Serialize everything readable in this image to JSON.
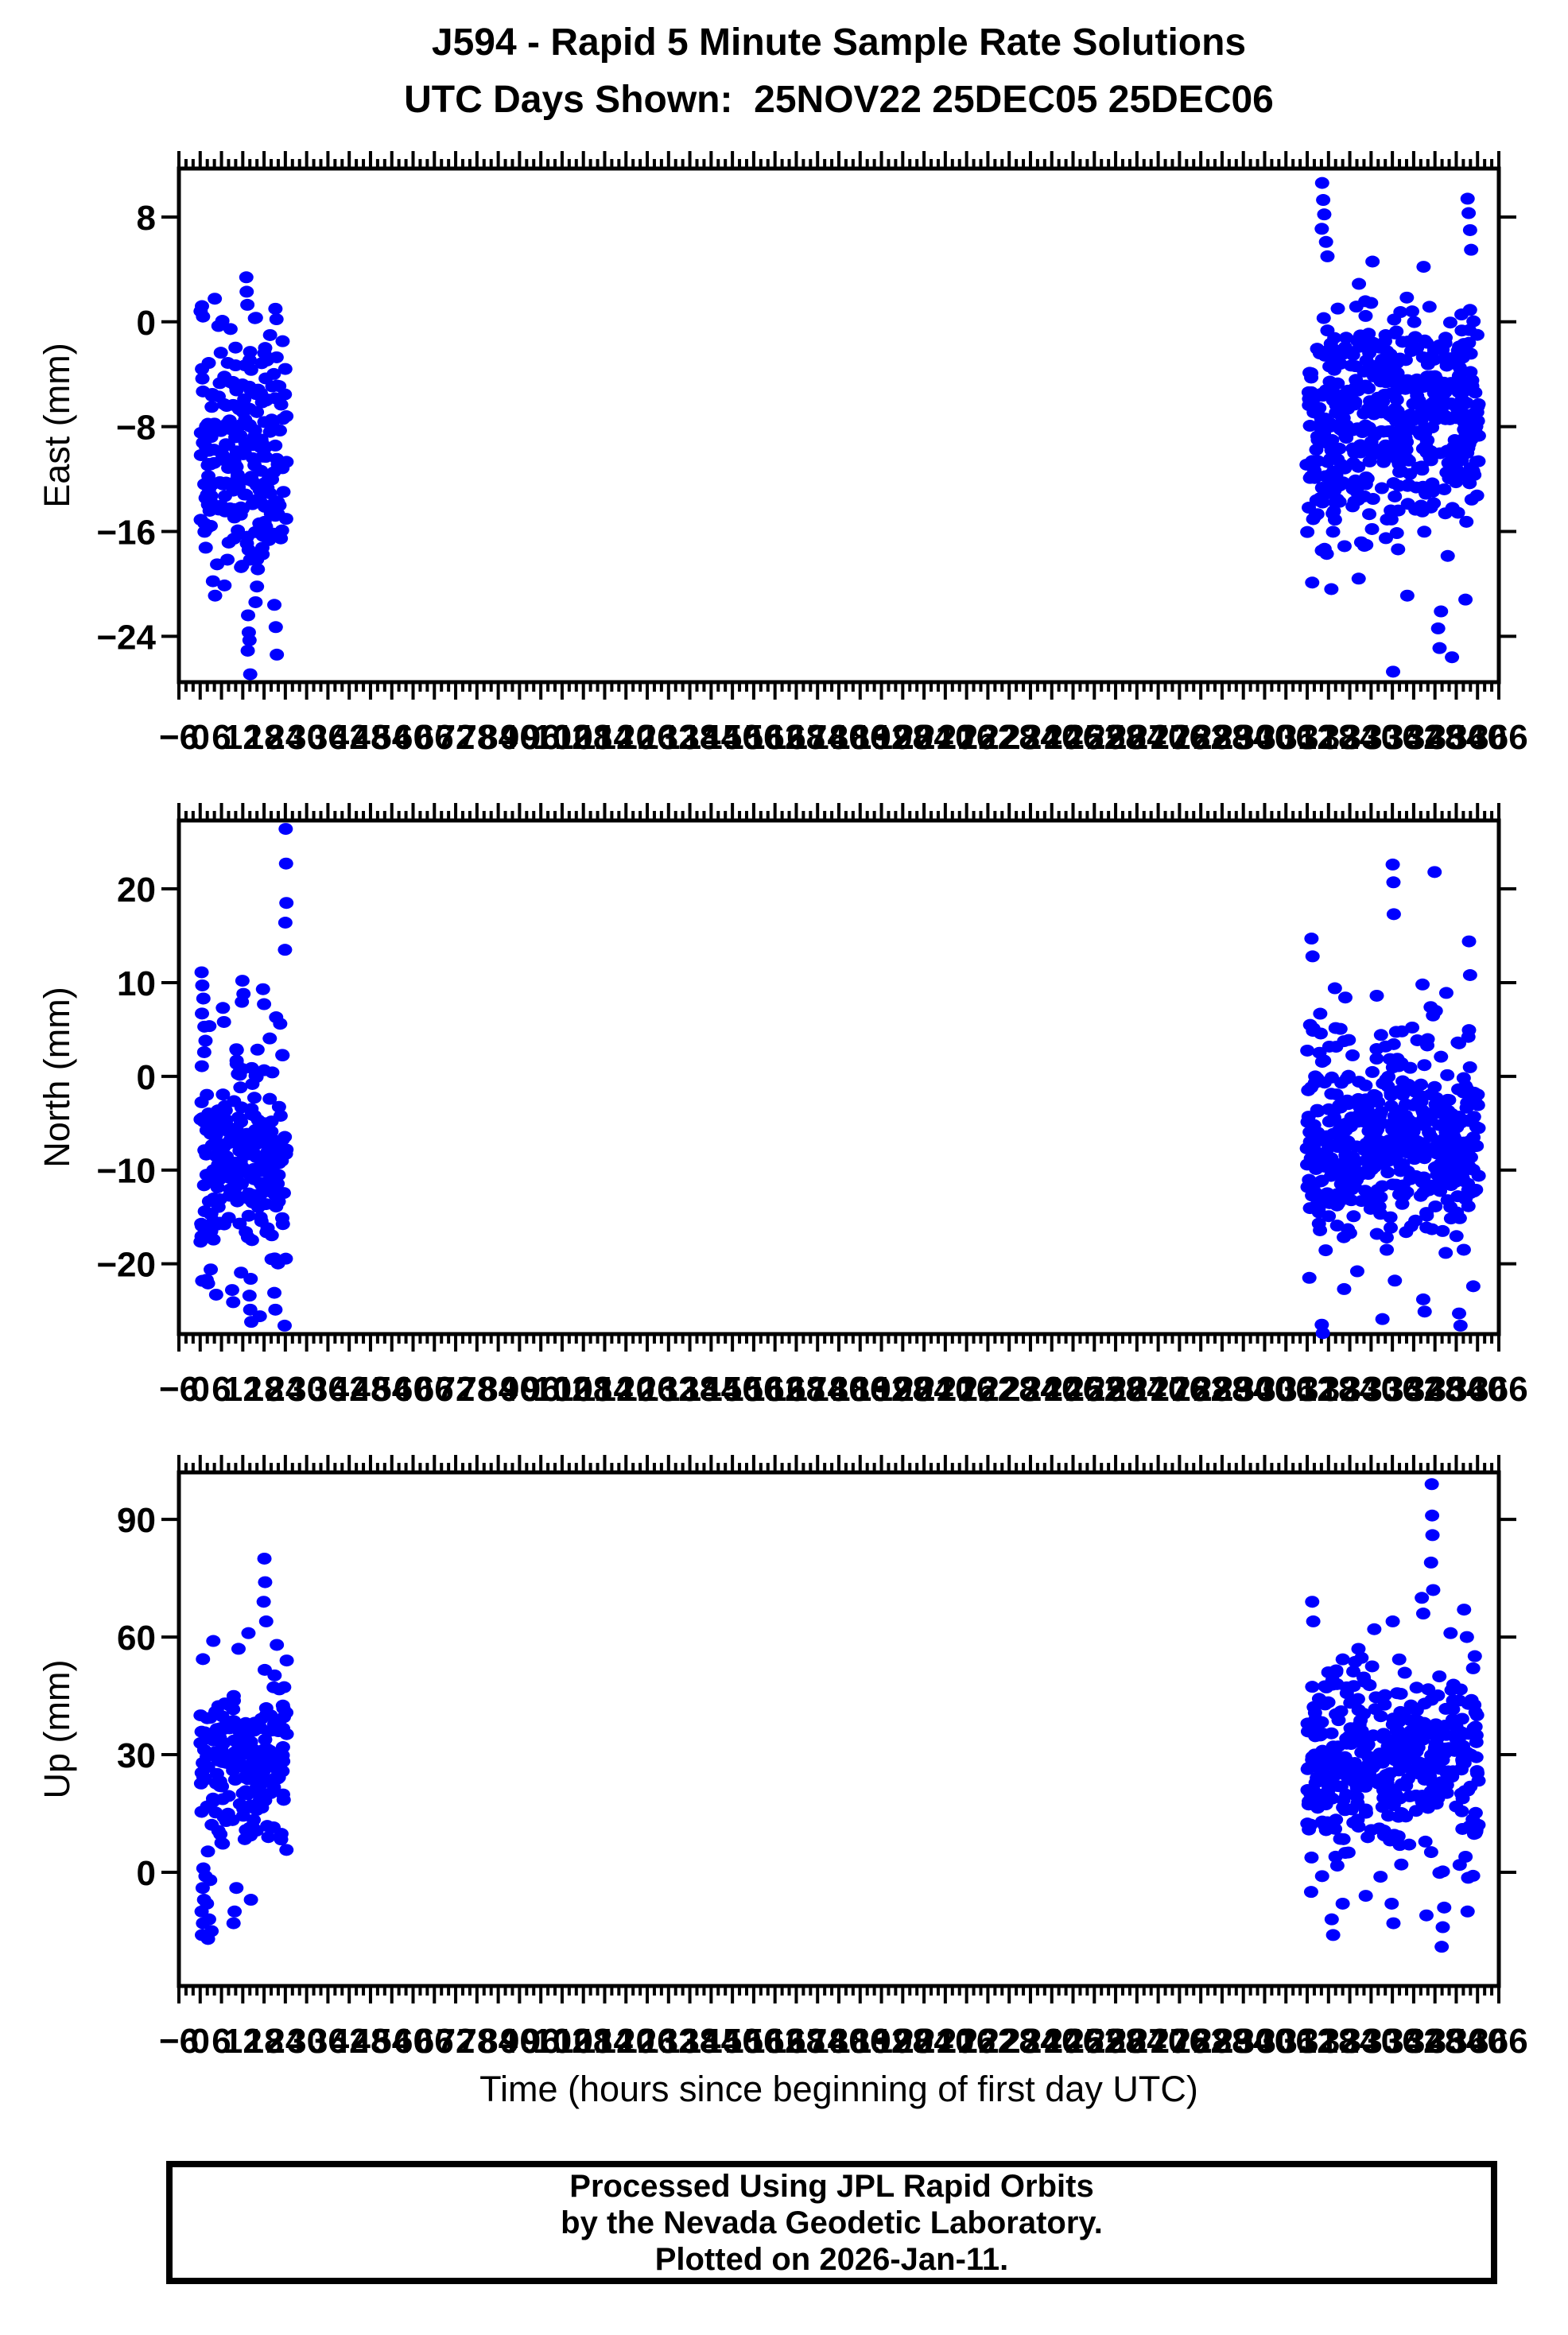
{
  "title": {
    "line1": "J594 - Rapid 5 Minute Sample Rate Solutions",
    "line2": "UTC Days Shown:  25NOV22 25DEC05 25DEC06"
  },
  "footer": {
    "line1": "Processed Using JPL Rapid Orbits",
    "line2": "by the Nevada Geodetic Laboratory.",
    "line3": "Plotted on 2026-Jan-11."
  },
  "colors": {
    "point": "#0000ff",
    "frame": "#000000",
    "background": "#ffffff",
    "text": "#000000"
  },
  "point_radius_x": 9,
  "point_radius_y": 7.5,
  "x_axis": {
    "title": "Time (hours since beginning of first day UTC)",
    "min": -6,
    "max": 366,
    "major_step": 6,
    "minor_step": 2,
    "tick_labels": [
      -6,
      0,
      6,
      12,
      18,
      24,
      30,
      36,
      42,
      48,
      54,
      60,
      66,
      72,
      78,
      84,
      90,
      96,
      102,
      108,
      114,
      120,
      126,
      132,
      138,
      144,
      150,
      156,
      162,
      168,
      174,
      180,
      186,
      192,
      198,
      204,
      210,
      216,
      222,
      228,
      234,
      240,
      246,
      252,
      258,
      264,
      270,
      276,
      282,
      288,
      294,
      300,
      306,
      312,
      318,
      324,
      330,
      336,
      342,
      348,
      354,
      360,
      366
    ]
  },
  "chart_data": [
    {
      "type": "scatter",
      "name": "east",
      "ylabel": "East (mm)",
      "ylim": [
        -27.5,
        11.7
      ],
      "yticks": [
        8,
        0,
        -8,
        -16,
        -24
      ],
      "seed": 11,
      "grid": false,
      "clusters": [
        {
          "n": 215,
          "x": [
            0,
            24.4
          ],
          "mean": -9.5,
          "sigma": 4.2,
          "clamp": [
            -19,
            1.8
          ]
        },
        {
          "n": 20,
          "x": [
            3,
            22
          ],
          "mean": -16.5,
          "sigma": 2.5,
          "clamp": [
            -21,
            -12
          ]
        },
        {
          "n": 455,
          "x": [
            311.8,
            360.4
          ],
          "mean": -8.5,
          "sigma": 4.2,
          "clamp": [
            -18,
            1.5
          ]
        },
        {
          "n": 45,
          "x": [
            312,
            360
          ],
          "mean": -1.5,
          "sigma": 2.2,
          "clamp": [
            -4.5,
            4.0
          ]
        }
      ],
      "outlier_points": [
        [
          13.0,
          3.4
        ],
        [
          13.1,
          2.3
        ],
        [
          13.3,
          1.3
        ],
        [
          21.2,
          1.0
        ],
        [
          21.5,
          0.2
        ],
        [
          0.5,
          1.2
        ],
        [
          0.8,
          0.4
        ],
        [
          13.5,
          -22.4
        ],
        [
          13.7,
          -23.7
        ],
        [
          13.4,
          -25.1
        ],
        [
          14.1,
          -26.9
        ],
        [
          20.9,
          -21.6
        ],
        [
          21.3,
          -23.3
        ],
        [
          4.2,
          -20.9
        ],
        [
          3.6,
          -19.8
        ],
        [
          16.0,
          -20.2
        ],
        [
          15.6,
          -21.4
        ],
        [
          21.6,
          -25.4
        ],
        [
          13.9,
          -24.3
        ],
        [
          316.2,
          10.6
        ],
        [
          316.5,
          9.3
        ],
        [
          316.8,
          8.2
        ],
        [
          316.1,
          7.1
        ],
        [
          317.3,
          6.1
        ],
        [
          317.7,
          5.0
        ],
        [
          357.2,
          9.4
        ],
        [
          357.5,
          8.3
        ],
        [
          357.9,
          7.0
        ],
        [
          358.2,
          5.5
        ],
        [
          330.4,
          4.6
        ],
        [
          344.8,
          4.2
        ],
        [
          318.8,
          -20.4
        ],
        [
          336.2,
          -26.7
        ],
        [
          348.9,
          -23.4
        ],
        [
          349.3,
          -24.9
        ],
        [
          349.7,
          -22.1
        ],
        [
          340.2,
          -20.9
        ],
        [
          326.5,
          -19.6
        ],
        [
          356.6,
          -21.2
        ],
        [
          313.4,
          -19.9
        ],
        [
          352.8,
          -25.6
        ]
      ]
    },
    {
      "type": "scatter",
      "name": "north",
      "ylabel": "North (mm)",
      "ylim": [
        -27.5,
        27.3
      ],
      "yticks": [
        20,
        10,
        0,
        -10,
        -20
      ],
      "seed": 22,
      "grid": false,
      "clusters": [
        {
          "n": 205,
          "x": [
            0,
            24.4
          ],
          "mean": -9.5,
          "sigma": 4.8,
          "clamp": [
            -22,
            -0.5
          ]
        },
        {
          "n": 22,
          "x": [
            0,
            24
          ],
          "mean": 1.5,
          "sigma": 2.5,
          "clamp": [
            -0.4,
            9
          ]
        },
        {
          "n": 440,
          "x": [
            311.8,
            360.4
          ],
          "mean": -7.5,
          "sigma": 4.8,
          "clamp": [
            -19,
            1.5
          ]
        },
        {
          "n": 38,
          "x": [
            312,
            360
          ],
          "mean": 3.0,
          "sigma": 2.5,
          "clamp": [
            1.5,
            10
          ]
        }
      ],
      "outlier_points": [
        [
          24.1,
          26.4
        ],
        [
          24.2,
          22.7
        ],
        [
          24.3,
          18.5
        ],
        [
          24.0,
          16.4
        ],
        [
          23.9,
          13.5
        ],
        [
          0.4,
          11.1
        ],
        [
          0.6,
          9.7
        ],
        [
          0.9,
          8.3
        ],
        [
          0.5,
          6.7
        ],
        [
          1.2,
          5.3
        ],
        [
          1.5,
          3.8
        ],
        [
          11.9,
          10.2
        ],
        [
          12.2,
          8.8
        ],
        [
          17.7,
          9.3
        ],
        [
          18.0,
          7.7
        ],
        [
          6.4,
          7.3
        ],
        [
          6.7,
          5.8
        ],
        [
          21.4,
          6.3
        ],
        [
          13.9,
          -23.4
        ],
        [
          14.1,
          -24.9
        ],
        [
          14.4,
          -26.2
        ],
        [
          20.9,
          -23.1
        ],
        [
          21.2,
          -24.9
        ],
        [
          9.0,
          -22.8
        ],
        [
          9.3,
          -24.1
        ],
        [
          23.8,
          -26.6
        ],
        [
          4.5,
          -23.3
        ],
        [
          2.2,
          -22.1
        ],
        [
          16.8,
          -25.6
        ],
        [
          336.1,
          22.6
        ],
        [
          336.3,
          20.7
        ],
        [
          336.4,
          17.3
        ],
        [
          347.9,
          21.8
        ],
        [
          313.2,
          14.7
        ],
        [
          313.5,
          12.8
        ],
        [
          357.6,
          14.4
        ],
        [
          357.9,
          10.8
        ],
        [
          344.5,
          9.8
        ],
        [
          351.2,
          8.9
        ],
        [
          319.8,
          9.4
        ],
        [
          331.6,
          8.6
        ],
        [
          316.1,
          -26.5
        ],
        [
          316.4,
          -27.4
        ],
        [
          354.8,
          -25.3
        ],
        [
          355.2,
          -26.6
        ],
        [
          344.7,
          -23.8
        ],
        [
          345.1,
          -25.1
        ],
        [
          322.4,
          -22.7
        ],
        [
          336.7,
          -21.8
        ],
        [
          326.1,
          -20.8
        ],
        [
          333.2,
          -25.9
        ],
        [
          358.8,
          -22.4
        ],
        [
          312.6,
          -21.5
        ]
      ]
    },
    {
      "type": "scatter",
      "name": "up",
      "ylabel": "Up (mm)",
      "ylim": [
        -29,
        102
      ],
      "yticks": [
        90,
        60,
        30,
        0
      ],
      "seed": 33,
      "grid": false,
      "clusters": [
        {
          "n": 195,
          "x": [
            0,
            24.4
          ],
          "mean": 30,
          "sigma": 11,
          "clamp": [
            3,
            56
          ]
        },
        {
          "n": 425,
          "x": [
            311.8,
            360.4
          ],
          "mean": 28,
          "sigma": 11.5,
          "clamp": [
            -2,
            57
          ]
        }
      ],
      "outlier_points": [
        [
          18.1,
          80
        ],
        [
          18.3,
          74
        ],
        [
          17.9,
          69
        ],
        [
          18.6,
          64
        ],
        [
          13.6,
          61
        ],
        [
          3.7,
          59
        ],
        [
          10.8,
          57
        ],
        [
          21.6,
          58
        ],
        [
          0.5,
          -16
        ],
        [
          0.8,
          -13
        ],
        [
          0.4,
          -10
        ],
        [
          1.1,
          -7
        ],
        [
          0.7,
          -4
        ],
        [
          1.5,
          -1
        ],
        [
          2.2,
          -17
        ],
        [
          2.5,
          -12
        ],
        [
          1.9,
          -8
        ],
        [
          9.4,
          -13
        ],
        [
          9.7,
          -10
        ],
        [
          3.2,
          -15
        ],
        [
          14.3,
          -7
        ],
        [
          10.2,
          -4
        ],
        [
          0.9,
          1
        ],
        [
          2.8,
          -2
        ],
        [
          347.1,
          99
        ],
        [
          347.2,
          91
        ],
        [
          347.3,
          86
        ],
        [
          346.9,
          79
        ],
        [
          347.5,
          72
        ],
        [
          313.4,
          69
        ],
        [
          313.7,
          64
        ],
        [
          344.3,
          70
        ],
        [
          344.7,
          66
        ],
        [
          330.9,
          62
        ],
        [
          356.2,
          67
        ],
        [
          352.4,
          61
        ],
        [
          336.1,
          64
        ],
        [
          357.0,
          60
        ],
        [
          349.9,
          -19
        ],
        [
          350.2,
          -14
        ],
        [
          350.6,
          -9
        ],
        [
          318.9,
          -12
        ],
        [
          319.3,
          -16
        ],
        [
          335.8,
          -8
        ],
        [
          336.3,
          -13
        ],
        [
          328.5,
          -6
        ],
        [
          357.2,
          -10
        ],
        [
          313.1,
          -5
        ],
        [
          345.6,
          -11
        ],
        [
          322.0,
          -8
        ]
      ]
    }
  ]
}
